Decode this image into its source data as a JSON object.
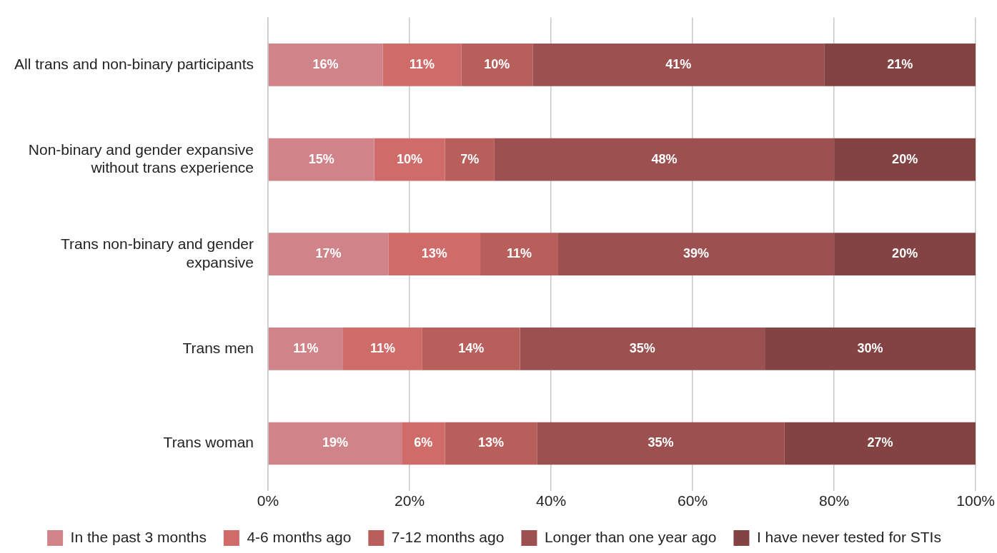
{
  "chart_data": {
    "type": "bar",
    "orientation": "horizontal",
    "stacked": true,
    "categories": [
      "All trans and non-binary participants",
      "Non-binary and gender expansive without trans experience",
      "Trans non-binary and gender expansive",
      "Trans men",
      "Trans woman"
    ],
    "series": [
      {
        "name": "In the past 3 months",
        "color": "#d0848a",
        "values": [
          16.2,
          15,
          17,
          10.6,
          18.9
        ],
        "value_labels": [
          "16%",
          "15%",
          "17%",
          "11%",
          "19%"
        ]
      },
      {
        "name": "4-6 months ago",
        "color": "#cf6b68",
        "values": [
          11.1,
          10,
          13,
          11.2,
          6.1
        ],
        "value_labels": [
          "11%",
          "10%",
          "13%",
          "11%",
          "6%"
        ]
      },
      {
        "name": "7-12 months ago",
        "color": "#b85f5c",
        "values": [
          10.1,
          7,
          11,
          13.8,
          13
        ],
        "value_labels": [
          "10%",
          "7%",
          "11%",
          "14%",
          "13%"
        ]
      },
      {
        "name": "Longer than one year ago",
        "color": "#9c5150",
        "values": [
          41.2,
          48,
          39,
          34.6,
          35
        ],
        "value_labels": [
          "41%",
          "48%",
          "39%",
          "35%",
          "35%"
        ]
      },
      {
        "name": "I have never tested for STIs",
        "color": "#844343",
        "values": [
          21.4,
          20,
          20,
          29.8,
          27
        ],
        "value_labels": [
          "21%",
          "20%",
          "20%",
          "30%",
          "27%"
        ]
      }
    ],
    "xlim": [
      0,
      100
    ],
    "xticks": [
      {
        "value": 0,
        "label": "0%"
      },
      {
        "value": 20,
        "label": "20%"
      },
      {
        "value": 40,
        "label": "40%"
      },
      {
        "value": 60,
        "label": "60%"
      },
      {
        "value": 80,
        "label": "80%"
      },
      {
        "value": 100,
        "label": "100%"
      }
    ],
    "grid": "x",
    "legend": "bottom"
  }
}
